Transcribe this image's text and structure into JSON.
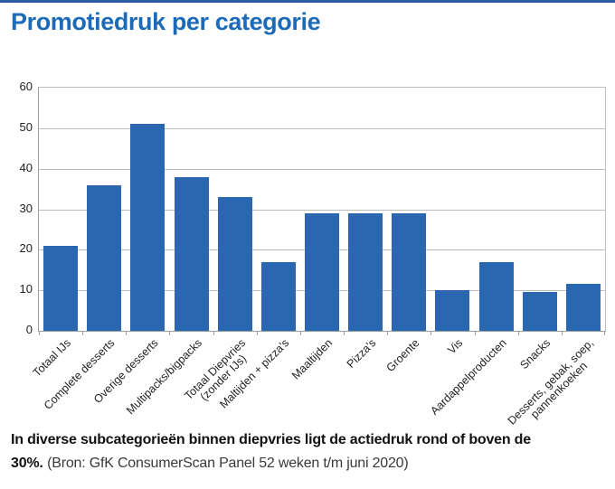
{
  "page": {
    "title": "Promotiedruk per categorie",
    "caption_bold_line1": "In diverse subcategorieën binnen diepvries ligt de actiedruk rond of boven de",
    "caption_bold_line2": "30%.",
    "caption_source": "(Bron: GfK ConsumerScan Panel 52 weken t/m juni 2020)"
  },
  "colors": {
    "bar": "#2B67B1",
    "title": "#1B6BB9",
    "top_rule": "#2B5BA4",
    "gridline": "#BFBFBF",
    "axis": "#9B9B9B",
    "tick_text": "#222222"
  },
  "chart_data": {
    "type": "bar",
    "title": "Promotiedruk per categorie",
    "categories": [
      "Totaal IJs",
      "Complete desserts",
      "Overige desserts",
      "Multipacks/bigpacks",
      "Totaal Diepvries\n(zonder IJs)",
      "Maltijden + pizza's",
      "Maaltijden",
      "Pizza's",
      "Groente",
      "Vis",
      "Aardappelproducten",
      "Snacks",
      "Desserts, gebak, soep,\npannenkoeken"
    ],
    "values": [
      21,
      36,
      51,
      38,
      33,
      17,
      29,
      29,
      29,
      10,
      17,
      9.5,
      11.5
    ],
    "xlabel": "",
    "ylabel": "",
    "ylim": [
      0,
      60
    ],
    "yticks": [
      0,
      10,
      20,
      30,
      40,
      50,
      60
    ],
    "grid": true,
    "legend": false
  }
}
